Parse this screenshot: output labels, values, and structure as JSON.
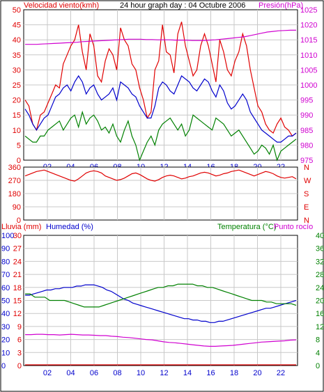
{
  "chart_data": [
    {
      "type": "line",
      "header": {
        "left": "Velocidad viento(kmh)",
        "center": "24 hour graph day : 04 Octubre 2006",
        "right": "Presión(hPa)"
      },
      "x_ticks": [
        "02",
        "04",
        "06",
        "08",
        "10",
        "12",
        "14",
        "16",
        "18",
        "20",
        "22"
      ],
      "y_left_ticks": [
        "0",
        "5",
        "10",
        "15",
        "20",
        "25",
        "30",
        "35",
        "40",
        "45",
        "50"
      ],
      "y_left_range": [
        0,
        50
      ],
      "y_right_ticks": [
        "975",
        "980",
        "985",
        "990",
        "995",
        "1000",
        "1005",
        "1010",
        "1015",
        "1020",
        "1025"
      ],
      "y_right_range": [
        975,
        1025
      ],
      "series": [
        {
          "key": "gust",
          "color": "#e00000",
          "values": [
            20,
            18,
            12,
            10,
            15,
            16,
            19,
            22,
            25,
            24,
            32,
            35,
            38,
            40,
            45,
            36,
            30,
            42,
            38,
            28,
            26,
            33,
            37,
            35,
            30,
            44,
            40,
            38,
            32,
            30,
            24,
            20,
            14,
            16,
            30,
            33,
            45,
            36,
            35,
            29,
            42,
            46,
            38,
            33,
            28,
            30,
            38,
            42,
            38,
            32,
            26,
            40,
            36,
            30,
            28,
            33,
            36,
            42,
            38,
            30,
            24,
            18,
            16,
            12,
            10,
            9,
            12,
            14,
            11,
            10,
            8,
            9
          ]
        },
        {
          "key": "avg",
          "color": "#0000cc",
          "values": [
            17,
            15,
            12,
            10,
            12,
            14,
            15,
            18,
            21,
            22,
            24,
            25,
            23,
            26,
            28,
            26,
            22,
            24,
            25,
            22,
            20,
            21,
            22,
            24,
            20,
            26,
            25,
            24,
            22,
            21,
            18,
            16,
            14,
            14,
            18,
            24,
            26,
            25,
            23,
            22,
            25,
            28,
            27,
            26,
            24,
            23,
            25,
            27,
            26,
            23,
            21,
            25,
            23,
            19,
            17,
            18,
            20,
            22,
            20,
            16,
            14,
            12,
            10,
            9,
            8,
            7,
            6,
            6,
            7,
            8,
            8,
            9
          ]
        },
        {
          "key": "min",
          "color": "#008000",
          "values": [
            8,
            7,
            6,
            6,
            8,
            8,
            10,
            11,
            12,
            13,
            10,
            12,
            14,
            15,
            11,
            16,
            12,
            14,
            15,
            13,
            10,
            11,
            9,
            12,
            8,
            6,
            10,
            13,
            8,
            5,
            0,
            3,
            6,
            8,
            5,
            10,
            12,
            13,
            14,
            12,
            10,
            12,
            8,
            10,
            15,
            14,
            13,
            12,
            11,
            10,
            14,
            13,
            12,
            10,
            8,
            9,
            10,
            8,
            6,
            4,
            2,
            3,
            5,
            4,
            2,
            5,
            0,
            3,
            4,
            5,
            6,
            7
          ]
        },
        {
          "key": "pressure",
          "color": "#d000d0",
          "axis": "right",
          "values": [
            1013.5,
            1013.5,
            1013.5,
            1013.6,
            1013.7,
            1013.8,
            1013.9,
            1014,
            1014.1,
            1014.2,
            1014.4,
            1014.5,
            1014.6,
            1014.7,
            1014.8,
            1014.9,
            1015,
            1015.1,
            1015.2,
            1015.2,
            1015.2,
            1015.1,
            1015.1,
            1015,
            1015,
            1015,
            1014.9,
            1014.9,
            1014.9,
            1014.8,
            1014.8,
            1014.8,
            1014.9,
            1015,
            1015.2,
            1015.4,
            1015.6,
            1015.8,
            1016,
            1016.4,
            1016.8,
            1017.2,
            1017.6,
            1017.8,
            1018,
            1018.1,
            1018.2,
            1018.2
          ]
        }
      ]
    },
    {
      "type": "line",
      "y_left_ticks": [
        "360",
        "270",
        "180",
        "90",
        "0"
      ],
      "y_left_range": [
        0,
        360
      ],
      "y_right_ticks": [
        "N",
        "W",
        "S",
        "E",
        "N"
      ],
      "series": [
        {
          "key": "direction",
          "color": "#e00000",
          "values": [
            300,
            310,
            320,
            330,
            335,
            340,
            330,
            320,
            310,
            300,
            290,
            280,
            270,
            265,
            280,
            300,
            320,
            330,
            335,
            330,
            320,
            300,
            290,
            280,
            270,
            275,
            285,
            300,
            315,
            320,
            310,
            295,
            280,
            270,
            265,
            275,
            290,
            300,
            305,
            300,
            290,
            280,
            285,
            295,
            300,
            310,
            320,
            325,
            320,
            310,
            300,
            305,
            315,
            320,
            330,
            335,
            340,
            330,
            320,
            310,
            300,
            310,
            320,
            330,
            325,
            315,
            300,
            290,
            285,
            290,
            295,
            280
          ]
        }
      ]
    },
    {
      "type": "line",
      "header": {
        "lluvia": "Lluvia (mm)",
        "humedad": "Humedad (%)",
        "temperatura": "Temperatura (°C)",
        "punto_rocio": "Punto rocío"
      },
      "x_ticks": [
        "02",
        "04",
        "06",
        "08",
        "10",
        "12",
        "14",
        "16",
        "18",
        "20",
        "22"
      ],
      "y_humidity_ticks": [
        "0",
        "10",
        "20",
        "30",
        "40",
        "50",
        "60",
        "70",
        "80",
        "90",
        "100"
      ],
      "y_humidity_range": [
        0,
        100
      ],
      "y_rain_ticks": [
        "0",
        "3",
        "6",
        "9",
        "12",
        "15",
        "18",
        "21",
        "24",
        "27",
        "30"
      ],
      "y_rain_range": [
        0,
        30
      ],
      "y_temp_ticks": [
        "0",
        "4",
        "8",
        "12",
        "16",
        "20",
        "24",
        "28",
        "32",
        "36",
        "40"
      ],
      "y_temp_range": [
        0,
        40
      ],
      "series": [
        {
          "key": "humidity",
          "color": "#0000cc",
          "axis": "humidity",
          "values": [
            54,
            54,
            55,
            56,
            57,
            58,
            58,
            59,
            59,
            60,
            60,
            60,
            61,
            61,
            62,
            62,
            62,
            61,
            60,
            58,
            57,
            55,
            53,
            51,
            50,
            48,
            47,
            46,
            45,
            44,
            43,
            42,
            41,
            40,
            39,
            38,
            37,
            36,
            36,
            35,
            35,
            34,
            34,
            33,
            33,
            34,
            34,
            35,
            36,
            37,
            38,
            39,
            40,
            41,
            42,
            43,
            44,
            44,
            45,
            46,
            47,
            48,
            49,
            50
          ]
        },
        {
          "key": "temperature",
          "color": "#008000",
          "axis": "temp",
          "values": [
            22,
            22,
            21,
            21,
            21,
            20,
            20,
            20,
            20,
            19.5,
            19,
            18.5,
            18,
            18,
            18,
            18,
            18.5,
            19,
            19.5,
            20,
            20.5,
            21,
            21.5,
            22,
            22.5,
            23,
            23.5,
            24,
            24,
            24.5,
            24.5,
            25,
            25,
            25,
            25,
            24.5,
            24.5,
            24,
            24,
            23.5,
            23,
            22.5,
            22,
            21.5,
            21,
            20.5,
            20,
            20,
            20,
            19.5,
            19.5,
            19,
            19,
            19,
            19,
            18.5
          ]
        },
        {
          "key": "dewpoint",
          "color": "#d000d0",
          "axis": "temp",
          "values": [
            9.5,
            9.5,
            9.6,
            9.6,
            9.5,
            9.5,
            9.4,
            9.5,
            9.6,
            9.5,
            9.4,
            9.4,
            9.3,
            9.2,
            9.2,
            9.0,
            8.9,
            8.7,
            8.6,
            8.4,
            8.2,
            8.0,
            7.9,
            7.6,
            7.3,
            7.1,
            7.0,
            6.8,
            6.6,
            6.4,
            6.2,
            6.0,
            5.9,
            5.9,
            6.0,
            6.1,
            6.2,
            6.4,
            6.6,
            6.8,
            7.0,
            7.2,
            7.3,
            7.4,
            7.5,
            7.6,
            7.8,
            7.9
          ]
        },
        {
          "key": "rain",
          "color": "#e00000",
          "axis": "rain",
          "values": [
            0,
            0,
            0,
            0,
            0,
            0,
            0,
            0,
            0,
            0,
            0,
            0
          ]
        }
      ]
    }
  ]
}
